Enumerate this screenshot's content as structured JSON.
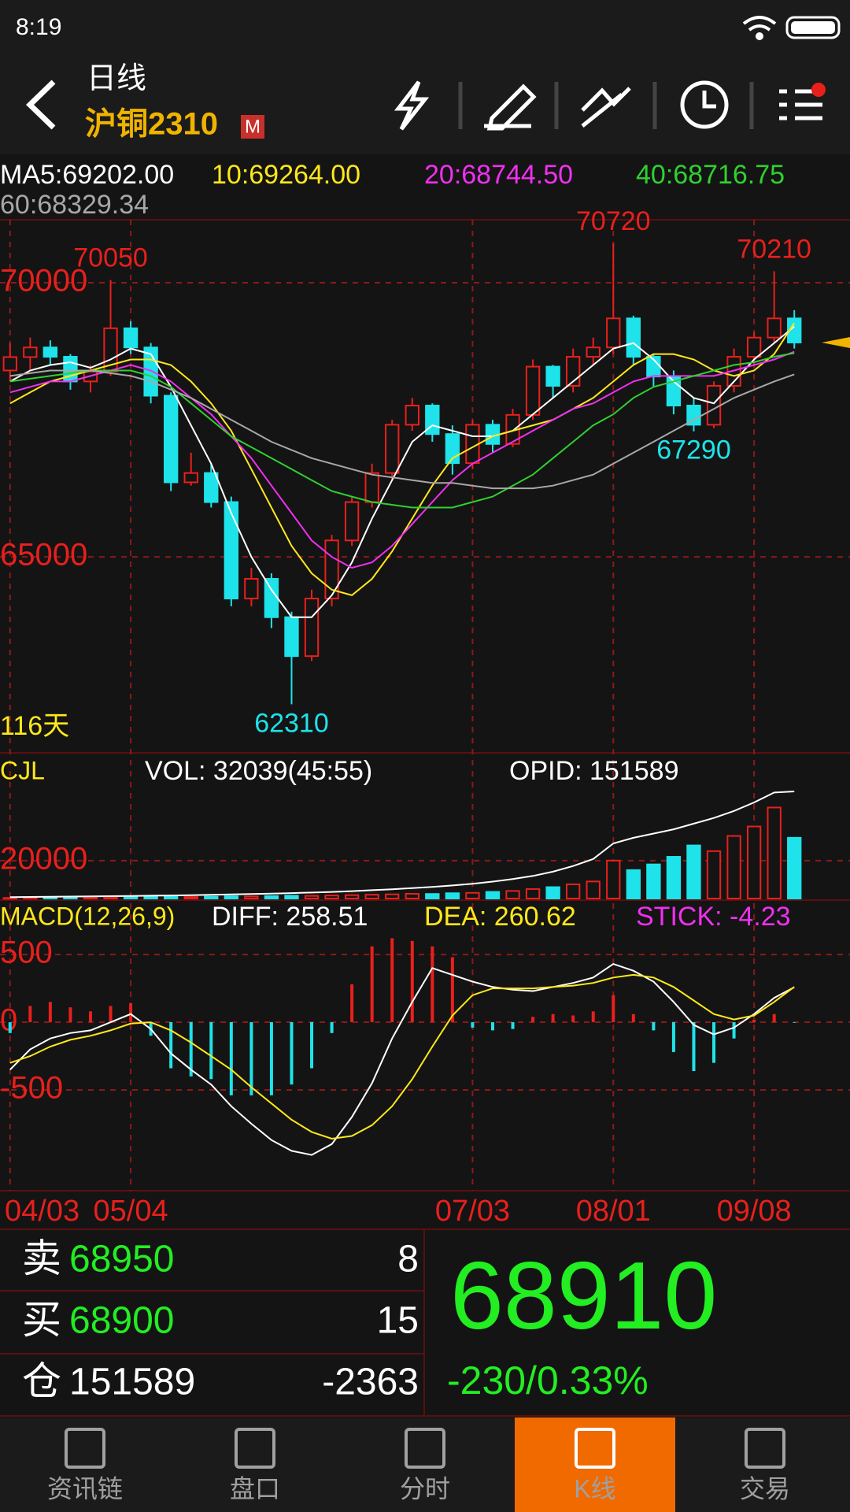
{
  "status_bar": {
    "time": "8:19"
  },
  "header": {
    "period": "日线",
    "symbol": "沪铜2310",
    "badge": "M"
  },
  "colors": {
    "up": "#e8201c",
    "down": "#1ee3ea"
  },
  "chart_data": [
    {
      "type": "candlestick",
      "days_label": "116天",
      "ylim": [
        61440,
        71150
      ],
      "yticks": [
        70000,
        65000
      ],
      "annotations": [
        70050,
        70720,
        70210,
        62310,
        67290
      ],
      "categories": [
        "04/03",
        null,
        null,
        null,
        null,
        null,
        "05/04",
        null,
        null,
        null,
        null,
        null,
        null,
        null,
        null,
        null,
        null,
        null,
        null,
        null,
        null,
        null,
        null,
        "07/03",
        null,
        null,
        null,
        null,
        null,
        null,
        "08/01",
        null,
        null,
        null,
        null,
        null,
        null,
        "09/08",
        null,
        null
      ],
      "candles": [
        [
          68400,
          68900,
          68200,
          68645
        ],
        [
          68645,
          69000,
          68400,
          68820
        ],
        [
          68820,
          68950,
          68500,
          68650
        ],
        [
          68650,
          68700,
          68050,
          68200
        ],
        [
          68200,
          68500,
          68000,
          68380
        ],
        [
          68380,
          70050,
          68300,
          69170
        ],
        [
          69170,
          69300,
          68700,
          68820
        ],
        [
          68820,
          68900,
          67800,
          67940
        ],
        [
          67940,
          68000,
          66200,
          66360
        ],
        [
          66360,
          66900,
          66300,
          66530
        ],
        [
          66530,
          66700,
          65900,
          66000
        ],
        [
          66000,
          66100,
          64100,
          64240
        ],
        [
          64240,
          64800,
          64100,
          64600
        ],
        [
          64600,
          64700,
          63700,
          63900
        ],
        [
          63900,
          64000,
          62310,
          63190
        ],
        [
          63190,
          64400,
          63100,
          64240
        ],
        [
          64240,
          65400,
          64100,
          65300
        ],
        [
          65300,
          66100,
          65200,
          66000
        ],
        [
          66000,
          66700,
          65900,
          66530
        ],
        [
          66530,
          67500,
          66400,
          67410
        ],
        [
          67410,
          67900,
          67300,
          67760
        ],
        [
          67760,
          67800,
          67100,
          67240
        ],
        [
          67240,
          67400,
          66500,
          66710
        ],
        [
          66710,
          67500,
          66600,
          67410
        ],
        [
          67410,
          67500,
          66900,
          67060
        ],
        [
          67060,
          67700,
          67000,
          67590
        ],
        [
          67590,
          68600,
          67500,
          68470
        ],
        [
          68470,
          68500,
          67900,
          68120
        ],
        [
          68120,
          68800,
          68000,
          68650
        ],
        [
          68650,
          69000,
          68500,
          68820
        ],
        [
          68820,
          70720,
          68700,
          69350
        ],
        [
          69350,
          69400,
          68500,
          68650
        ],
        [
          68650,
          68700,
          68100,
          68290
        ],
        [
          68290,
          68400,
          67600,
          67760
        ],
        [
          67760,
          67900,
          67290,
          67410
        ],
        [
          67410,
          68200,
          67350,
          68120
        ],
        [
          68120,
          68800,
          68000,
          68650
        ],
        [
          68650,
          69100,
          68500,
          69000
        ],
        [
          69000,
          70210,
          68900,
          69350
        ],
        [
          69350,
          69500,
          68800,
          68910
        ]
      ],
      "series": [
        {
          "name": "MA5:69202.00",
          "color": "#ffffff",
          "values": [
            68200,
            68400,
            68500,
            68550,
            68450,
            68600,
            68800,
            68700,
            68100,
            67400,
            66700,
            65800,
            65000,
            64400,
            63900,
            63900,
            64300,
            64900,
            65700,
            66400,
            67100,
            67400,
            67300,
            67200,
            67200,
            67300,
            67600,
            67900,
            68200,
            68500,
            68800,
            68900,
            68600,
            68200,
            67900,
            67800,
            68200,
            68600,
            68900,
            69202
          ]
        },
        {
          "name": "10:69264.00",
          "color": "#ffe81a",
          "values": [
            67800,
            68000,
            68200,
            68300,
            68400,
            68500,
            68600,
            68600,
            68500,
            68200,
            67800,
            67300,
            66600,
            65900,
            65200,
            64700,
            64400,
            64300,
            64600,
            65100,
            65700,
            66300,
            66800,
            67000,
            67200,
            67300,
            67400,
            67500,
            67700,
            67900,
            68200,
            68500,
            68700,
            68700,
            68600,
            68400,
            68300,
            68400,
            68700,
            69264
          ]
        },
        {
          "name": "20:68744.50",
          "color": "#f030f0",
          "values": [
            68000,
            68100,
            68200,
            68200,
            68300,
            68400,
            68500,
            68400,
            68200,
            67900,
            67600,
            67200,
            66800,
            66300,
            65800,
            65300,
            65000,
            64800,
            64900,
            65200,
            65600,
            66000,
            66400,
            66700,
            66900,
            67100,
            67300,
            67500,
            67700,
            67800,
            68000,
            68200,
            68300,
            68300,
            68300,
            68300,
            68400,
            68500,
            68600,
            68744.5
          ]
        },
        {
          "name": "40:68716.75",
          "color": "#30d030",
          "values": [
            68200,
            68250,
            68300,
            68350,
            68400,
            68400,
            68400,
            68300,
            68100,
            67800,
            67500,
            67200,
            67000,
            66800,
            66600,
            66400,
            66200,
            66100,
            66000,
            65950,
            65900,
            65900,
            65900,
            66000,
            66100,
            66300,
            66500,
            66800,
            67100,
            67400,
            67600,
            67900,
            68100,
            68200,
            68300,
            68400,
            68500,
            68550,
            68650,
            68716.75
          ]
        },
        {
          "name": "60:68329.34",
          "color": "#a8a8a8",
          "values": [
            68300,
            68350,
            68400,
            68400,
            68400,
            68350,
            68300,
            68200,
            68050,
            67900,
            67700,
            67500,
            67300,
            67100,
            66950,
            66800,
            66700,
            66600,
            66500,
            66450,
            66400,
            66350,
            66350,
            66300,
            66250,
            66250,
            66250,
            66300,
            66400,
            66500,
            66700,
            66900,
            67100,
            67300,
            67500,
            67700,
            67900,
            68050,
            68200,
            68329.34
          ]
        }
      ]
    },
    {
      "type": "bar",
      "title": "CJL",
      "ylim": [
        0,
        76000
      ],
      "yticks": [
        20000
      ],
      "y2lim": [
        0,
        204000
      ],
      "series": [
        {
          "name": "VOL: 32039(45:55)",
          "color": "#ffffff",
          "values": [
            300,
            400,
            500,
            400,
            600,
            500,
            700,
            800,
            900,
            800,
            1000,
            1200,
            1100,
            1300,
            1500,
            1400,
            1600,
            1800,
            2000,
            2200,
            2500,
            2400,
            2800,
            3000,
            3500,
            4000,
            5000,
            6000,
            7500,
            9000,
            20000,
            15000,
            18000,
            22000,
            28000,
            25000,
            33000,
            38000,
            48000,
            32039
          ]
        },
        {
          "name": "OPID: 151589",
          "color": "#ffffff",
          "axis": "y2",
          "values": [
            2000,
            2200,
            2500,
            2800,
            3000,
            3300,
            3600,
            4000,
            4400,
            4800,
            5300,
            5800,
            6400,
            7000,
            7700,
            8500,
            9400,
            10500,
            11800,
            13200,
            14800,
            16500,
            18500,
            21000,
            24000,
            27500,
            32000,
            38000,
            46000,
            56000,
            78000,
            86000,
            92000,
            98000,
            106000,
            114000,
            124000,
            136000,
            150000,
            151589
          ]
        }
      ]
    },
    {
      "type": "macd",
      "title": "MACD(12,26,9)",
      "ylim": [
        -1244,
        890
      ],
      "yticks": [
        500,
        0,
        -500
      ],
      "series": [
        {
          "name": "DIFF: 258.51",
          "color": "#ffffff",
          "values": [
            -350,
            -200,
            -120,
            -80,
            -60,
            0,
            60,
            -50,
            -230,
            -350,
            -460,
            -620,
            -750,
            -870,
            -950,
            -980,
            -900,
            -700,
            -450,
            -120,
            150,
            400,
            350,
            300,
            260,
            240,
            230,
            260,
            290,
            330,
            430,
            380,
            300,
            150,
            -20,
            -90,
            -40,
            60,
            180,
            258.51
          ]
        },
        {
          "name": "DEA: 260.62",
          "color": "#ffe81a",
          "values": [
            -300,
            -250,
            -180,
            -130,
            -100,
            -60,
            -10,
            0,
            -60,
            -150,
            -250,
            -350,
            -480,
            -600,
            -720,
            -810,
            -860,
            -840,
            -760,
            -620,
            -420,
            -180,
            50,
            200,
            250,
            250,
            250,
            260,
            270,
            290,
            330,
            350,
            330,
            260,
            160,
            60,
            20,
            50,
            150,
            260.62
          ]
        },
        {
          "name": "STICK: -4.23",
          "color": "#f030f0",
          "values": [
            -80,
            120,
            150,
            110,
            80,
            120,
            140,
            -100,
            -340,
            -400,
            -420,
            -540,
            -540,
            -540,
            -460,
            -340,
            -80,
            280,
            560,
            620,
            600,
            560,
            480,
            -40,
            -60,
            -50,
            40,
            60,
            50,
            80,
            200,
            60,
            -60,
            -220,
            -360,
            -300,
            -120,
            20,
            60,
            -4.23
          ]
        }
      ]
    }
  ],
  "quote": {
    "ask": {
      "label": "卖",
      "price": 68950,
      "volume": 8
    },
    "bid": {
      "label": "买",
      "price": 68900,
      "volume": 15
    },
    "open_interest": {
      "label": "仓",
      "value": 151589,
      "change": -2363
    },
    "last": 68910,
    "change_text": "-230/0.33%"
  },
  "tabs": {
    "items": [
      "资讯链",
      "盘口",
      "分时",
      "K线",
      "交易"
    ],
    "active": "K线"
  }
}
